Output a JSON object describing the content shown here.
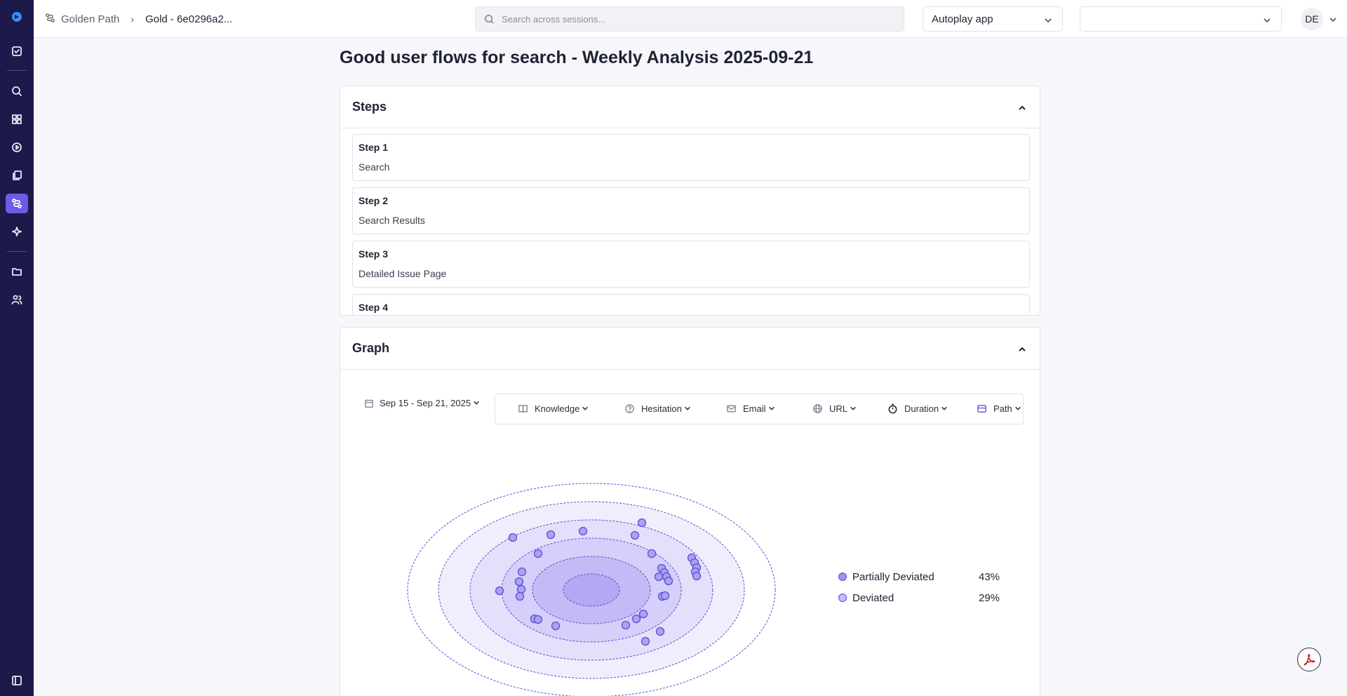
{
  "header": {
    "breadcrumb_root": "Golden Path",
    "breadcrumb_current": "Gold - 6e0296a2...",
    "search_placeholder": "Search across sessions...",
    "app_select": "Autoplay app",
    "secondary_select": "",
    "avatar_initials": "DE"
  },
  "sidebar": {
    "icons": [
      "logo-icon",
      "checklist-icon",
      "search-icon",
      "dashboard-icon",
      "play-icon",
      "copy-icon",
      "path-icon",
      "sparkle-icon",
      "folder-icon",
      "users-icon",
      "sidebar-toggle-icon"
    ],
    "active": "path-icon"
  },
  "page": {
    "title": "Good user flows for search - Weekly Analysis 2025-09-21"
  },
  "steps_card": {
    "title": "Steps",
    "steps": [
      {
        "label": "Step 1",
        "name": "Search"
      },
      {
        "label": "Step 2",
        "name": "Search Results"
      },
      {
        "label": "Step 3",
        "name": "Detailed Issue Page"
      },
      {
        "label": "Step 4",
        "name": ""
      }
    ]
  },
  "graph_card": {
    "title": "Graph",
    "date_range": "Sep 15 - Sep 21, 2025",
    "filters": [
      {
        "label": "Knowledge",
        "icon": "book-icon"
      },
      {
        "label": "Hesitation",
        "icon": "help-circle-icon"
      },
      {
        "label": "Email",
        "icon": "mail-icon"
      },
      {
        "label": "URL",
        "icon": "globe-icon"
      },
      {
        "label": "Duration",
        "icon": "timer-icon"
      },
      {
        "label": "Path",
        "icon": "path-filter-icon"
      }
    ],
    "legend": [
      {
        "label": "Partially Deviated",
        "value": "43%",
        "color": "#9c94f0"
      },
      {
        "label": "Deviated",
        "value": "29%",
        "color": "#c4bff7"
      }
    ]
  },
  "colors": {
    "sidebar_bg": "#1b1a4a",
    "accent": "#6b5ce7",
    "ring_stroke": "#5a4fd6"
  }
}
